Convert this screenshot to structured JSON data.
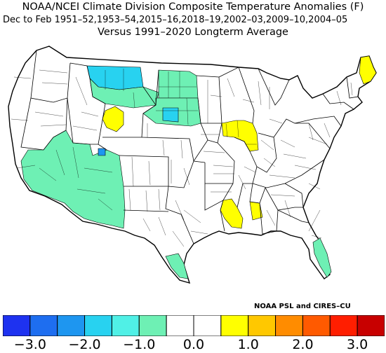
{
  "header": {
    "title_line1": "NOAA/NCEI Climate Division Composite Temperature Anomalies (F)",
    "title_line2": "Dec to Feb  1951–52,1953–54,2015–16,2018–19,2002–03,2009–10,2004–05",
    "title_line3": "Versus 1991–2020 Longterm Average"
  },
  "credit": "NOAA PSL and CIRES–CU",
  "legend": {
    "colors": [
      "#1e32f0",
      "#1e6ef0",
      "#1e96f0",
      "#28d2f0",
      "#50f0e6",
      "#6ef0b4",
      "#ffffff",
      "#ffffff",
      "#ffff00",
      "#ffc800",
      "#ff8c00",
      "#ff5a00",
      "#ff1e00",
      "#c80000"
    ],
    "tick_labels": [
      "−3.0",
      "−2.0",
      "−1.0",
      "0.0",
      "1.0",
      "2.0",
      "3.0"
    ]
  },
  "map_regions": [
    {
      "name": "montana-north",
      "anomaly_class": "-1.5",
      "color": "#28d2f0"
    },
    {
      "name": "montana-south",
      "anomaly_class": "-1.0",
      "color": "#6ef0b4"
    },
    {
      "name": "north-dakota",
      "anomaly_class": "-1.0",
      "color": "#6ef0b4"
    },
    {
      "name": "south-dakota",
      "anomaly_class": "-1.0",
      "color": "#6ef0b4"
    },
    {
      "name": "south-dakota-central",
      "anomaly_class": "-1.5",
      "color": "#28d2f0"
    },
    {
      "name": "wyoming-west",
      "anomaly_class": "+0.5",
      "color": "#ffff00"
    },
    {
      "name": "southwest",
      "anomaly_class": "-1.0",
      "color": "#6ef0b4"
    },
    {
      "name": "utah-spot",
      "anomaly_class": "-2.0",
      "color": "#1e96f0"
    },
    {
      "name": "iowa-illinois",
      "anomaly_class": "+0.5",
      "color": "#ffff00"
    },
    {
      "name": "lower-mississippi",
      "anomaly_class": "+0.5",
      "color": "#ffff00"
    },
    {
      "name": "maine",
      "anomaly_class": "+0.5",
      "color": "#ffff00"
    },
    {
      "name": "south-texas",
      "anomaly_class": "-1.0",
      "color": "#6ef0b4"
    },
    {
      "name": "florida",
      "anomaly_class": "-1.0",
      "color": "#6ef0b4"
    }
  ]
}
